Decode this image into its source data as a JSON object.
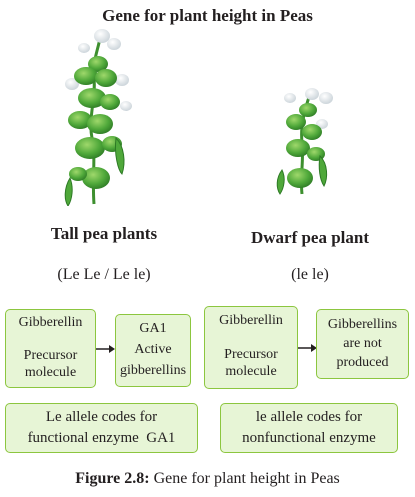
{
  "title": "Gene for plant height in Peas",
  "tall": {
    "name": "Tall pea plants",
    "genotype": "(Le Le / Le le)",
    "precursor_box": [
      "Gibberellin",
      "Precursor",
      "molecule"
    ],
    "product_box": [
      "GA1",
      "Active",
      "gibberellins"
    ],
    "note": [
      "Le allele codes for",
      "functional enzyme  GA1"
    ]
  },
  "dwarf": {
    "name": "Dwarf pea plant",
    "genotype": "(le le)",
    "precursor_box": [
      "Gibberellin",
      "Precursor",
      "molecule"
    ],
    "product_box": [
      "Gibberellins",
      "are not",
      "produced"
    ],
    "note": [
      "le allele codes for",
      "nonfunctional enzyme"
    ]
  },
  "caption": {
    "figure_label": "Figure 2.8:",
    "text": " Gene for plant height in Peas"
  },
  "colors": {
    "box_fill": "#e7f5d6",
    "box_border": "#8cc63f",
    "leaf_green": "#4fa83a",
    "flower_white": "#f4f6f8"
  }
}
